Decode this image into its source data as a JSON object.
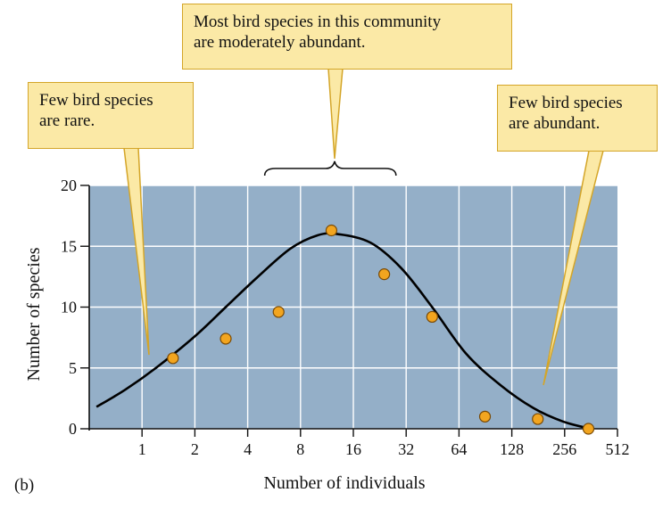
{
  "chart_data": {
    "type": "scatter",
    "panel_label": "(b)",
    "xlabel": "Number of individuals",
    "ylabel": "Number of species",
    "x_scale": "log2",
    "x_ticks": [
      1,
      2,
      4,
      8,
      16,
      32,
      64,
      128,
      256,
      512
    ],
    "x_tick_labels": [
      "1",
      "2",
      "4",
      "8",
      "16",
      "32",
      "64",
      "128",
      "256",
      "512"
    ],
    "xlim": [
      0.5,
      512
    ],
    "y_ticks": [
      0,
      5,
      10,
      15,
      20
    ],
    "y_tick_labels": [
      "0",
      "5",
      "10",
      "15",
      "20"
    ],
    "ylim": [
      0,
      20
    ],
    "grid": true,
    "points": [
      {
        "x": 1.5,
        "y": 5.8
      },
      {
        "x": 3,
        "y": 7.4
      },
      {
        "x": 6,
        "y": 9.6
      },
      {
        "x": 12,
        "y": 16.3
      },
      {
        "x": 24,
        "y": 12.7
      },
      {
        "x": 45,
        "y": 9.2
      },
      {
        "x": 90,
        "y": 1.0
      },
      {
        "x": 180,
        "y": 0.8
      },
      {
        "x": 350,
        "y": 0.0
      }
    ],
    "curve": [
      {
        "x": 0.55,
        "y": 1.8
      },
      {
        "x": 0.8,
        "y": 3.2
      },
      {
        "x": 1.2,
        "y": 5.0
      },
      {
        "x": 2,
        "y": 7.6
      },
      {
        "x": 3,
        "y": 10.0
      },
      {
        "x": 4.5,
        "y": 12.4
      },
      {
        "x": 7,
        "y": 14.8
      },
      {
        "x": 10,
        "y": 15.9
      },
      {
        "x": 13,
        "y": 16.0
      },
      {
        "x": 20,
        "y": 15.3
      },
      {
        "x": 30,
        "y": 13.2
      },
      {
        "x": 45,
        "y": 10.0
      },
      {
        "x": 70,
        "y": 6.2
      },
      {
        "x": 110,
        "y": 3.6
      },
      {
        "x": 170,
        "y": 1.7
      },
      {
        "x": 250,
        "y": 0.6
      },
      {
        "x": 360,
        "y": 0.0
      }
    ],
    "annotations": [
      {
        "id": "rare",
        "lines": [
          "Few bird species",
          "are rare."
        ]
      },
      {
        "id": "moderate",
        "lines": [
          "Most bird species in this community",
          "are moderately abundant."
        ],
        "range": [
          5,
          28
        ]
      },
      {
        "id": "abundant",
        "lines": [
          "Few bird species",
          "are abundant."
        ]
      }
    ],
    "colors": {
      "plot_background": "#94afc8",
      "gridlines": "#ffffff",
      "points_fill": "#f2a51f",
      "points_stroke": "#7a4a05",
      "curve": "#000000",
      "callout_fill": "#fbe9a6",
      "callout_border": "#d4a528"
    }
  }
}
